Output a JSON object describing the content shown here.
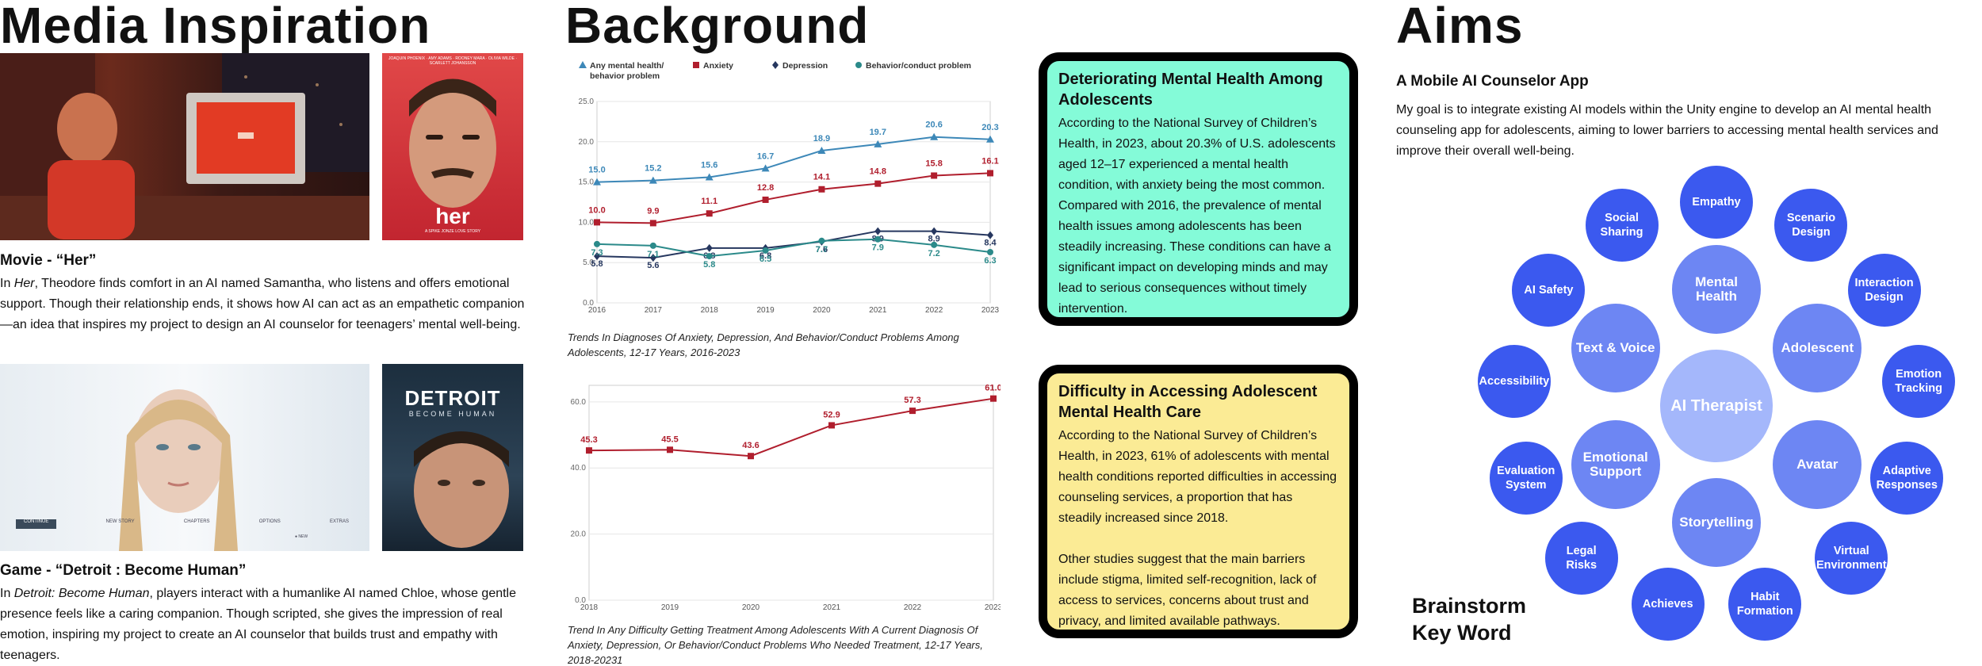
{
  "headings": {
    "media": "Media Inspiration",
    "background": "Background",
    "aims": "Aims"
  },
  "media": {
    "movie_title": "Movie - “Her”",
    "movie_text": [
      "In ",
      "Her",
      ", Theodore finds comfort in an AI named Samantha, who listens and offers emotional support. Though their relationship ends, it shows how AI can act as an empathetic companion—an idea that inspires my project to design an AI counselor for teenagers’ mental well-being."
    ],
    "her_poster_text": "her",
    "her_poster_credits": "JOAQUIN PHOENIX · AMY ADAMS · ROONEY MARA · OLIVIA WILDE · SCARLETT JOHANSSON",
    "her_poster_director": "A SPIKE JONZE LOVE STORY",
    "game_title": "Game - “Detroit : Become Human”",
    "game_text": [
      "In ",
      "Detroit: Become Human",
      ", players interact with a humanlike AI named Chloe, whose gentle presence feels like a caring companion. Though scripted, she gives the impression of real emotion, inspiring my project to create an AI counselor that builds trust and empathy with teenagers."
    ],
    "detroit_logo": "DETROIT",
    "detroit_sub": "BECOME HUMAN",
    "game_menu": [
      "CONTINUE",
      "NEW STORY",
      "CHAPTERS",
      "OPTIONS",
      "EXTRAS"
    ],
    "game_menu_hint": "● NEW"
  },
  "chart_data": [
    {
      "type": "line",
      "title": "",
      "xlabel": "",
      "ylabel": "",
      "categories": [
        "2016",
        "2017",
        "2018",
        "2019",
        "2020",
        "2021",
        "2022",
        "2023"
      ],
      "ylim": [
        0,
        25
      ],
      "yticks": [
        "0.0",
        "5.0",
        "10.0",
        "15.0",
        "20.0",
        "25.0"
      ],
      "legend": [
        "Any mental health/ behavior problem",
        "Anxiety",
        "Depression",
        "Behavior/conduct problem"
      ],
      "series": [
        {
          "name": "Any mental health/behavior problem",
          "color": "#3d88b8",
          "marker": "triangle",
          "values": [
            15.0,
            15.2,
            15.6,
            16.7,
            18.9,
            19.7,
            20.6,
            20.3
          ]
        },
        {
          "name": "Anxiety",
          "color": "#b01e2d",
          "marker": "square",
          "values": [
            10.0,
            9.9,
            11.1,
            12.8,
            14.1,
            14.8,
            15.8,
            16.1
          ]
        },
        {
          "name": "Depression",
          "color": "#26375f",
          "marker": "diamond",
          "values": [
            5.8,
            5.6,
            6.8,
            6.8,
            7.6,
            8.9,
            8.9,
            8.4
          ]
        },
        {
          "name": "Behavior/conduct problem",
          "color": "#2b8a8a",
          "marker": "circle",
          "values": [
            7.3,
            7.1,
            5.8,
            6.5,
            7.7,
            7.9,
            7.2,
            6.3
          ]
        }
      ],
      "caption": "Trends In Diagnoses Of Anxiety, Depression, And Behavior/Conduct Problems Among Adolescents, 12-17 Years, 2016-2023"
    },
    {
      "type": "line",
      "title": "",
      "xlabel": "",
      "ylabel": "",
      "categories": [
        "2018",
        "2019",
        "2020",
        "2021",
        "2022",
        "2023"
      ],
      "ylim": [
        0,
        65
      ],
      "yticks": [
        "0.0",
        "20.0",
        "40.0",
        "60.0"
      ],
      "series": [
        {
          "name": "Difficulty getting treatment",
          "color": "#b01e2d",
          "marker": "square",
          "values": [
            45.3,
            45.5,
            43.6,
            52.9,
            57.3,
            61.0
          ]
        }
      ],
      "caption": "Trend In Any Difficulty Getting Treatment Among Adolescents With A Current Diagnosis Of Anxiety, Depression, Or Behavior/Conduct Problems Who Needed Treatment, 12-17 Years, 2018-20231"
    }
  ],
  "cards": [
    {
      "title": "Deteriorating Mental Health Among Adolescents",
      "body": "According to the National Survey of Children’s Health, in 2023, about 20.3% of U.S. adolescents aged 12–17 experienced a mental health condition, with anxiety being the most common. Compared with 2016, the prevalence of mental health issues among adolescents has been steadily increasing. These conditions can have a significant impact on developing minds and may lead to serious consequences without timely intervention.",
      "color": "#84fbd8"
    },
    {
      "title": "Difficulty in Accessing Adolescent Mental Health Care",
      "body": "According to the National Survey of Children’s Health, in 2023, 61% of adolescents with mental health conditions reported difficulties in accessing counseling services, a proportion that has steadily increased since 2018.",
      "body2": "Other studies suggest that the main barriers include stigma, limited self-recognition, lack of access to services, concerns about trust and privacy, and limited available pathways.",
      "color": "#fbeb95"
    }
  ],
  "aims": {
    "app_title": "A Mobile AI Counselor App",
    "app_text": "My goal is to integrate existing AI models within the Unity engine to develop an AI mental health counseling app for adolescents, aiming to lower barriers to accessing mental health services and improve their overall well-being.",
    "brainstorm_label": [
      "Brainstorm",
      "Key Word"
    ],
    "center": "AI Therapist",
    "inner": [
      "Mental Health",
      "Adolescent",
      "Avatar",
      "Storytelling",
      "Emotional Support",
      "Text & Voice"
    ],
    "outer": [
      "Empathy",
      "Scenario Design",
      "Interaction Design",
      "Emotion Tracking",
      "Adaptive Responses",
      "Virtual Environment",
      "Habit Formation",
      "Achieves",
      "Legal Risks",
      "Evaluation System",
      "Accessibility",
      "AI Safety",
      "Social Sharing"
    ],
    "colors": {
      "center": "#a4b7fb",
      "inner": "#6d86f3",
      "outer": "#3b59ef"
    }
  }
}
